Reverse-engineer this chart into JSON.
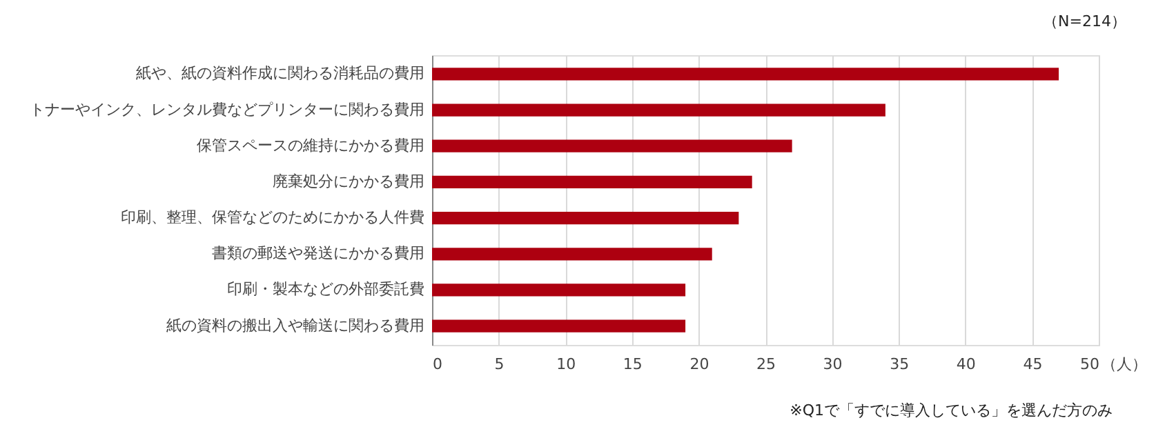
{
  "chart_data": {
    "type": "bar",
    "orientation": "horizontal",
    "categories": [
      "紙や、紙の資料作成に関わる消耗品の費用",
      "トナーやインク、レンタル費などプリンターに関わる費用",
      "保管スペースの維持にかかる費用",
      "廃棄処分にかかる費用",
      "印刷、整理、保管などのためにかかる人件費",
      "書類の郵送や発送にかかる費用",
      "印刷・製本などの外部委託費",
      "紙の資料の搬出入や輸送に関わる費用"
    ],
    "values": [
      47,
      34,
      27,
      24,
      23,
      21,
      19,
      19
    ],
    "color": "#ad0010",
    "xlim": [
      0,
      50
    ],
    "xticks": [
      0,
      5,
      10,
      15,
      20,
      25,
      30,
      35,
      40,
      45,
      50
    ],
    "xlabel": "（人）",
    "grid": "x",
    "annotations": [
      "（N=214）",
      "※Q1で「すでに導入している」を選んだ方のみ"
    ]
  }
}
